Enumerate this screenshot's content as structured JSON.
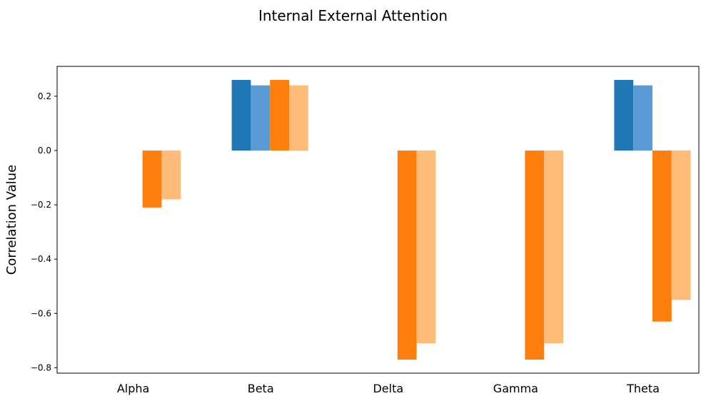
{
  "chart_data": {
    "type": "bar",
    "title": "Internal External Attention",
    "xlabel": "",
    "ylabel": "Correlation Value",
    "categories": [
      "Alpha",
      "Beta",
      "Delta",
      "Gamma",
      "Theta"
    ],
    "ylim": [
      -0.82,
      0.31
    ],
    "yticks": [
      -0.8,
      -0.6,
      -0.4,
      -0.2,
      0.0,
      0.2
    ],
    "ytick_labels": [
      "−0.8",
      "−0.6",
      "−0.4",
      "−0.2",
      "0.0",
      "0.2"
    ],
    "grid": false,
    "legend": null,
    "series": [
      {
        "color": "#1f77b4",
        "values": [
          0.0,
          0.26,
          0.0,
          0.0,
          0.26
        ]
      },
      {
        "color": "#5b9bd5",
        "values": [
          0.0,
          0.24,
          0.0,
          0.0,
          0.24
        ]
      },
      {
        "color": "#ff7f0e",
        "values": [
          -0.21,
          0.26,
          -0.77,
          -0.77,
          -0.63
        ]
      },
      {
        "color": "#ffbb78",
        "values": [
          -0.18,
          0.24,
          -0.71,
          -0.71,
          -0.55
        ]
      }
    ]
  }
}
